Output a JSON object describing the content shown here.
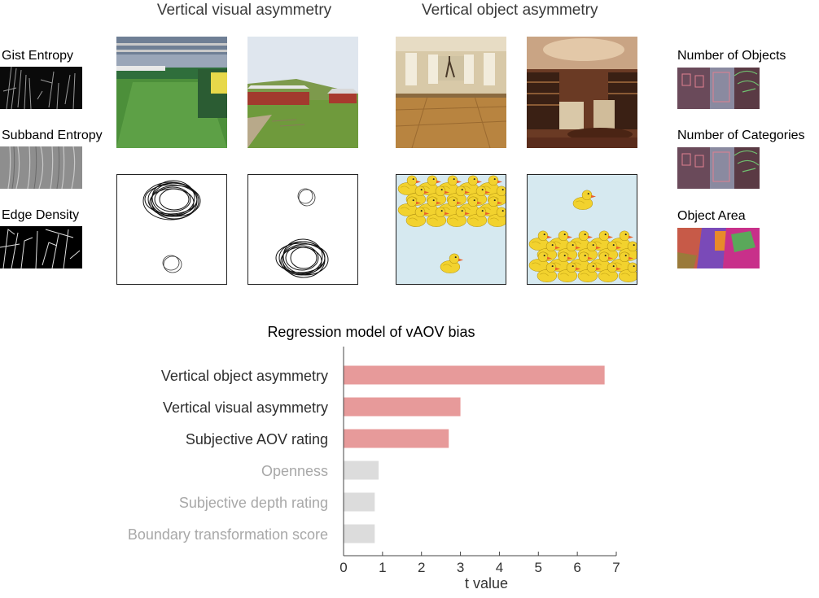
{
  "left_measures": [
    {
      "label": "Gist Entropy",
      "thumb_icon": "gist-filter-thumbnail"
    },
    {
      "label": "Subband Entropy",
      "thumb_icon": "subband-filter-thumbnail"
    },
    {
      "label": "Edge Density",
      "thumb_icon": "edge-map-thumbnail"
    }
  ],
  "right_measures": [
    {
      "label": "Number of Objects",
      "thumb_icon": "object-outline-thumbnail"
    },
    {
      "label": "Number of Categories",
      "thumb_icon": "category-outline-thumbnail"
    },
    {
      "label": "Object Area",
      "thumb_icon": "segmentation-map-thumbnail"
    }
  ],
  "columns": {
    "visual_title": "Vertical visual asymmetry",
    "object_title": "Vertical object asymmetry"
  },
  "colors": {
    "highlight_bar": "#e79a9a",
    "muted_bar": "#dcdcdc",
    "highlight_label": "#2e2e2e",
    "muted_label": "#a8a8a8",
    "duck_background": "#d6e9f0",
    "duck_body": "#f2d22e"
  },
  "chart_data": {
    "type": "bar",
    "orientation": "horizontal",
    "title": "Regression model  of vAOV bias",
    "xlabel": "t value",
    "xlim": [
      0,
      7
    ],
    "xticks": [
      0,
      1,
      2,
      3,
      4,
      5,
      6,
      7
    ],
    "categories": [
      "Vertical object asymmetry",
      "Vertical visual asymmetry",
      "Subjective AOV rating",
      "Openness",
      "Subjective depth rating",
      "Boundary transformation score"
    ],
    "values": [
      6.7,
      3.0,
      2.7,
      0.9,
      0.8,
      0.8
    ],
    "highlighted": [
      true,
      true,
      true,
      false,
      false,
      false
    ],
    "grid": false
  }
}
